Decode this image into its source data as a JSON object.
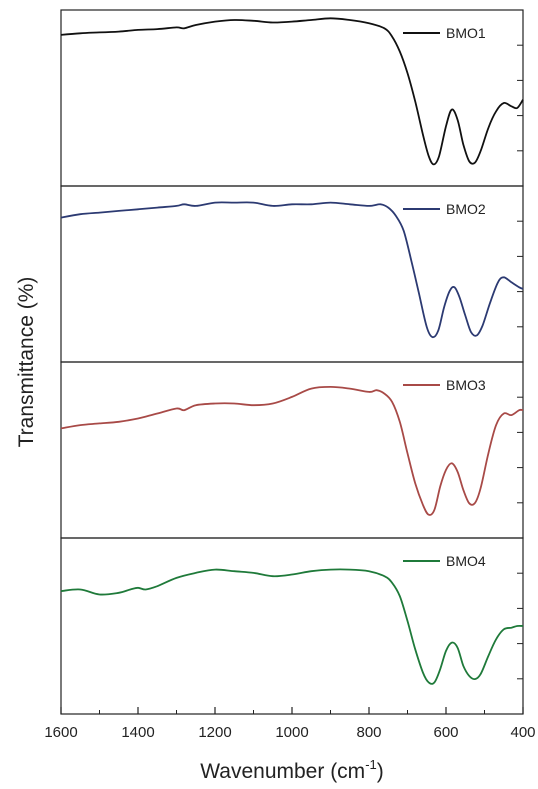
{
  "chart_data": {
    "type": "line",
    "xlabel": "Wavenumber (cm",
    "xlabel_sup": "-1",
    "xlabel_end": ")",
    "ylabel": "Transmittance (%)",
    "xlim": [
      1600,
      400
    ],
    "x_reversed": true,
    "x_ticks": [
      1600,
      1400,
      1200,
      1000,
      800,
      600,
      400
    ],
    "y_ticks_shown": false,
    "grid": false,
    "legend_position": "top-right",
    "panels": [
      {
        "name": "BMO1",
        "color": "#111111",
        "ylim": [
          0,
          100
        ],
        "points": [
          [
            1600,
            88
          ],
          [
            1550,
            89
          ],
          [
            1500,
            89.5
          ],
          [
            1450,
            90
          ],
          [
            1400,
            91
          ],
          [
            1350,
            91.5
          ],
          [
            1300,
            92.5
          ],
          [
            1280,
            92
          ],
          [
            1250,
            94
          ],
          [
            1200,
            96
          ],
          [
            1150,
            97
          ],
          [
            1100,
            96.5
          ],
          [
            1050,
            95.5
          ],
          [
            1000,
            96
          ],
          [
            950,
            97
          ],
          [
            900,
            98
          ],
          [
            850,
            97
          ],
          [
            800,
            95
          ],
          [
            760,
            92
          ],
          [
            740,
            87
          ],
          [
            720,
            78
          ],
          [
            700,
            65
          ],
          [
            680,
            48
          ],
          [
            660,
            28
          ],
          [
            645,
            15
          ],
          [
            632,
            10
          ],
          [
            618,
            15
          ],
          [
            600,
            33
          ],
          [
            585,
            43
          ],
          [
            570,
            37
          ],
          [
            555,
            22
          ],
          [
            540,
            12
          ],
          [
            525,
            11
          ],
          [
            510,
            18
          ],
          [
            490,
            32
          ],
          [
            470,
            42
          ],
          [
            450,
            47
          ],
          [
            430,
            45
          ],
          [
            415,
            44
          ],
          [
            400,
            49
          ]
        ]
      },
      {
        "name": "BMO2",
        "color": "#2c3a72",
        "ylim": [
          0,
          100
        ],
        "points": [
          [
            1600,
            84
          ],
          [
            1550,
            86
          ],
          [
            1500,
            87
          ],
          [
            1450,
            88
          ],
          [
            1400,
            89
          ],
          [
            1350,
            90
          ],
          [
            1300,
            91
          ],
          [
            1280,
            92
          ],
          [
            1250,
            91
          ],
          [
            1200,
            93
          ],
          [
            1150,
            93
          ],
          [
            1100,
            93
          ],
          [
            1050,
            91
          ],
          [
            1000,
            92
          ],
          [
            950,
            92
          ],
          [
            900,
            93
          ],
          [
            850,
            92
          ],
          [
            800,
            91
          ],
          [
            770,
            92
          ],
          [
            750,
            90
          ],
          [
            730,
            85
          ],
          [
            710,
            76
          ],
          [
            690,
            58
          ],
          [
            670,
            38
          ],
          [
            650,
            18
          ],
          [
            635,
            12
          ],
          [
            620,
            16
          ],
          [
            605,
            30
          ],
          [
            590,
            40
          ],
          [
            578,
            42
          ],
          [
            565,
            36
          ],
          [
            550,
            25
          ],
          [
            535,
            15
          ],
          [
            520,
            13
          ],
          [
            505,
            19
          ],
          [
            485,
            33
          ],
          [
            465,
            45
          ],
          [
            450,
            48
          ],
          [
            430,
            45
          ],
          [
            410,
            42
          ],
          [
            400,
            41
          ]
        ]
      },
      {
        "name": "BMO3",
        "color": "#a84a47",
        "ylim": [
          0,
          100
        ],
        "points": [
          [
            1600,
            63
          ],
          [
            1550,
            65
          ],
          [
            1500,
            66
          ],
          [
            1450,
            67
          ],
          [
            1400,
            69
          ],
          [
            1350,
            72
          ],
          [
            1300,
            75
          ],
          [
            1280,
            74
          ],
          [
            1250,
            77
          ],
          [
            1200,
            78
          ],
          [
            1150,
            78
          ],
          [
            1100,
            77
          ],
          [
            1050,
            78
          ],
          [
            1000,
            82
          ],
          [
            950,
            87
          ],
          [
            900,
            88
          ],
          [
            850,
            87
          ],
          [
            800,
            85
          ],
          [
            780,
            86
          ],
          [
            760,
            84
          ],
          [
            740,
            79
          ],
          [
            720,
            67
          ],
          [
            700,
            48
          ],
          [
            680,
            30
          ],
          [
            660,
            17
          ],
          [
            645,
            11
          ],
          [
            630,
            14
          ],
          [
            615,
            28
          ],
          [
            600,
            38
          ],
          [
            585,
            42
          ],
          [
            570,
            37
          ],
          [
            555,
            26
          ],
          [
            540,
            18
          ],
          [
            525,
            18
          ],
          [
            510,
            27
          ],
          [
            490,
            48
          ],
          [
            470,
            65
          ],
          [
            450,
            72
          ],
          [
            430,
            71
          ],
          [
            410,
            74
          ],
          [
            400,
            74
          ]
        ]
      },
      {
        "name": "BMO4",
        "color": "#1f7a3a",
        "ylim": [
          0,
          100
        ],
        "points": [
          [
            1600,
            71
          ],
          [
            1550,
            72
          ],
          [
            1500,
            69
          ],
          [
            1450,
            70
          ],
          [
            1420,
            72
          ],
          [
            1400,
            73
          ],
          [
            1380,
            72
          ],
          [
            1350,
            74
          ],
          [
            1300,
            79
          ],
          [
            1250,
            82
          ],
          [
            1200,
            84
          ],
          [
            1150,
            83
          ],
          [
            1100,
            82
          ],
          [
            1050,
            80
          ],
          [
            1000,
            81
          ],
          [
            950,
            83
          ],
          [
            900,
            84
          ],
          [
            850,
            84
          ],
          [
            800,
            83
          ],
          [
            760,
            80
          ],
          [
            740,
            76
          ],
          [
            720,
            68
          ],
          [
            700,
            53
          ],
          [
            680,
            36
          ],
          [
            660,
            22
          ],
          [
            645,
            16
          ],
          [
            630,
            16
          ],
          [
            615,
            24
          ],
          [
            600,
            35
          ],
          [
            585,
            40
          ],
          [
            570,
            37
          ],
          [
            555,
            26
          ],
          [
            540,
            20
          ],
          [
            525,
            18
          ],
          [
            510,
            21
          ],
          [
            490,
            32
          ],
          [
            470,
            42
          ],
          [
            450,
            48
          ],
          [
            430,
            49
          ],
          [
            415,
            50
          ],
          [
            400,
            50
          ]
        ]
      }
    ]
  }
}
